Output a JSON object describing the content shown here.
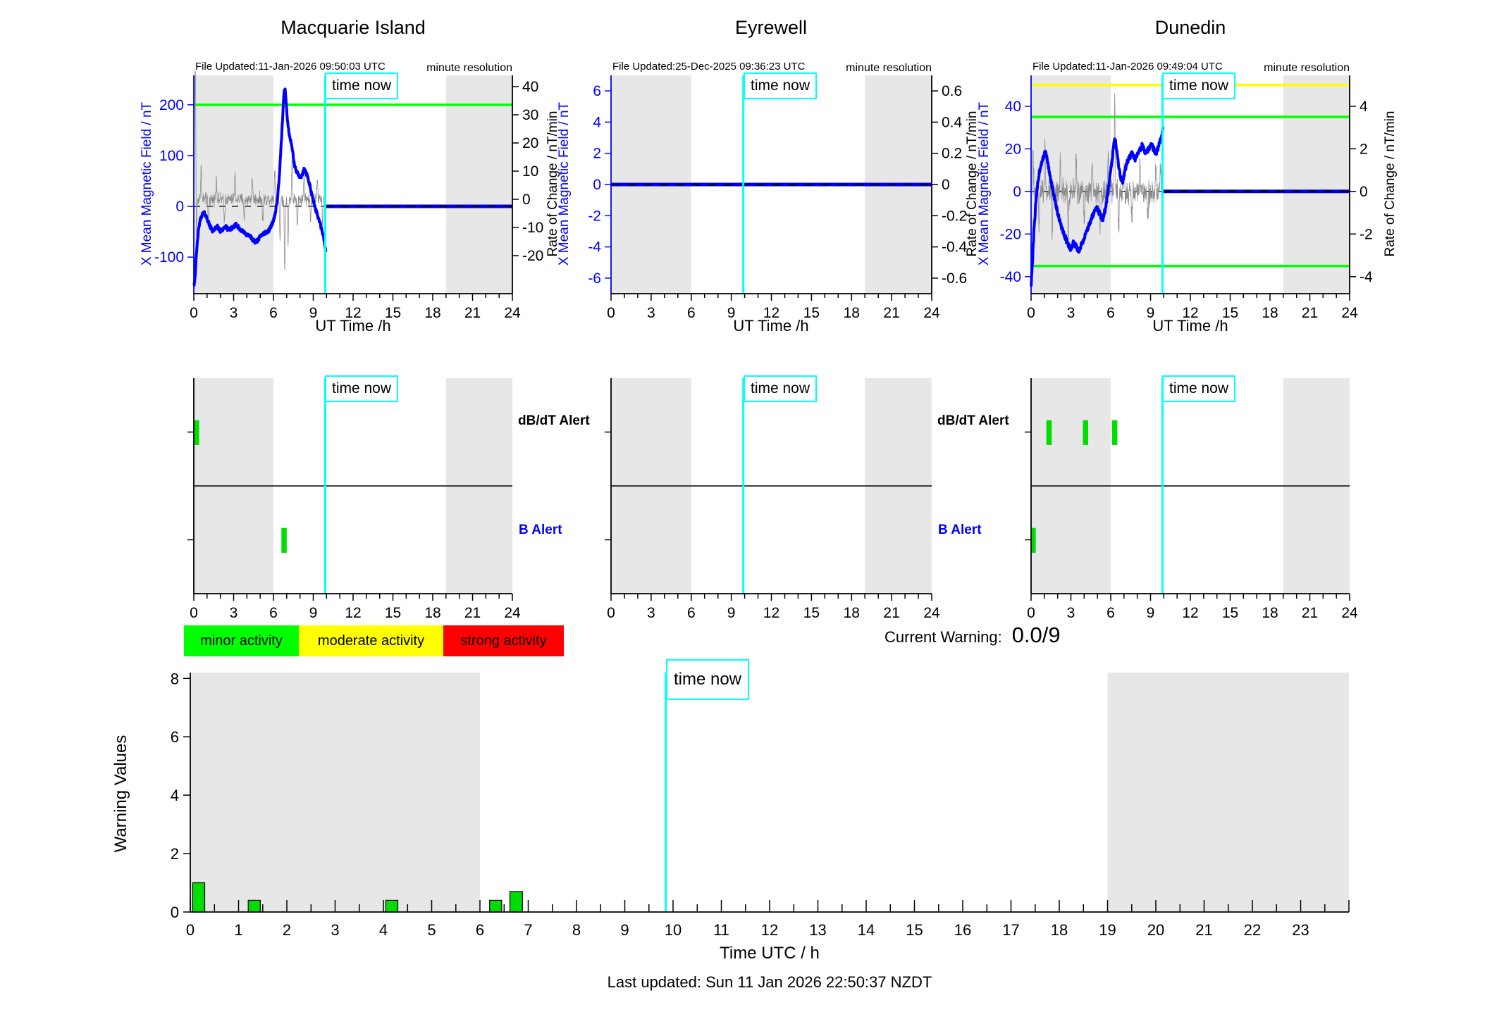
{
  "ui": {
    "time_now_label": "time now",
    "legend": [
      {
        "label": "minor activity",
        "color": "#00ff00"
      },
      {
        "label": "moderate activity",
        "color": "#ffff00"
      },
      {
        "label": "strong activity",
        "color": "#ff0000"
      }
    ],
    "current_warning_label": "Current Warning:",
    "current_warning_value": "0.0/9",
    "last_updated": "Last updated: Sun 11 Jan 2026 22:50:37 NZDT",
    "colors": {
      "field_line": "#0000ff",
      "forecast_line": "#0000e0",
      "noise_line": "#8c8c8c",
      "night_band": "#e7e7e7",
      "time_now": "#00ffff",
      "alert_bar": "#00dd00",
      "axis_left": "#0000ff",
      "axis_dark": "#000000"
    }
  },
  "chart_data": {
    "stations": [
      {
        "name": "Macquarie Island",
        "file_updated": "File Updated:11-Jan-2026 09:50:03 UTC",
        "resolution_note": "minute resolution",
        "type": "line",
        "x_axis": {
          "label": "UT Time /h",
          "lim": [
            0,
            24
          ],
          "ticks": [
            0,
            3,
            6,
            9,
            12,
            15,
            18,
            21,
            24
          ],
          "minor_step": 1
        },
        "y_left": {
          "label": "X Mean Magnetic Field / nT",
          "lim": [
            -172,
            258
          ],
          "ticks": [
            200,
            100,
            0,
            -100
          ]
        },
        "y_right": {
          "label": "Rate of Change / nT/min",
          "lim": [
            -33.5,
            44
          ],
          "ticks": [
            40,
            30,
            20,
            10,
            0,
            -10,
            -20
          ]
        },
        "night_bands": [
          [
            0,
            6
          ],
          [
            19,
            24
          ]
        ],
        "thresholds": [
          {
            "value": 200,
            "color": "#00ff00"
          }
        ],
        "time_now": 9.9,
        "forecast_from": 9.9,
        "forecast_value": 0,
        "field_series": [
          [
            0,
            -155
          ],
          [
            0.05,
            -150
          ],
          [
            0.1,
            -135
          ],
          [
            0.2,
            -95
          ],
          [
            0.3,
            -60
          ],
          [
            0.45,
            -30
          ],
          [
            0.6,
            -18
          ],
          [
            0.75,
            -12
          ],
          [
            0.9,
            -18
          ],
          [
            1.05,
            -28
          ],
          [
            1.2,
            -38
          ],
          [
            1.4,
            -48
          ],
          [
            1.6,
            -44
          ],
          [
            1.8,
            -40
          ],
          [
            2.0,
            -50
          ],
          [
            2.2,
            -44
          ],
          [
            2.4,
            -40
          ],
          [
            2.6,
            -46
          ],
          [
            2.8,
            -44
          ],
          [
            3.0,
            -40
          ],
          [
            3.2,
            -36
          ],
          [
            3.4,
            -42
          ],
          [
            3.6,
            -48
          ],
          [
            3.8,
            -52
          ],
          [
            4.0,
            -56
          ],
          [
            4.2,
            -58
          ],
          [
            4.4,
            -64
          ],
          [
            4.6,
            -70
          ],
          [
            4.8,
            -68
          ],
          [
            5.0,
            -60
          ],
          [
            5.2,
            -54
          ],
          [
            5.4,
            -52
          ],
          [
            5.6,
            -50
          ],
          [
            5.8,
            -40
          ],
          [
            6.0,
            -28
          ],
          [
            6.15,
            -12
          ],
          [
            6.3,
            15
          ],
          [
            6.45,
            60
          ],
          [
            6.6,
            130
          ],
          [
            6.7,
            180
          ],
          [
            6.8,
            225
          ],
          [
            6.88,
            232
          ],
          [
            6.95,
            210
          ],
          [
            7.05,
            170
          ],
          [
            7.15,
            148
          ],
          [
            7.3,
            128
          ],
          [
            7.45,
            108
          ],
          [
            7.55,
            85
          ],
          [
            7.7,
            70
          ],
          [
            7.85,
            64
          ],
          [
            8.0,
            58
          ],
          [
            8.15,
            60
          ],
          [
            8.3,
            72
          ],
          [
            8.45,
            68
          ],
          [
            8.6,
            55
          ],
          [
            8.75,
            40
          ],
          [
            8.9,
            22
          ],
          [
            9.05,
            8
          ],
          [
            9.2,
            -8
          ],
          [
            9.35,
            -20
          ],
          [
            9.5,
            -32
          ],
          [
            9.65,
            -48
          ],
          [
            9.8,
            -65
          ],
          [
            9.9,
            -80
          ],
          [
            9.95,
            -92
          ]
        ],
        "noise": {
          "amplitude": 3.2,
          "until": 9.9,
          "spikes": [
            [
              0.07,
              30
            ],
            [
              0.13,
              38
            ],
            [
              0.2,
              -16
            ],
            [
              0.55,
              12
            ],
            [
              1.1,
              -9
            ],
            [
              1.7,
              8
            ],
            [
              2.3,
              -8
            ],
            [
              3.1,
              9
            ],
            [
              3.8,
              -7
            ],
            [
              4.4,
              8
            ],
            [
              5.2,
              -8
            ],
            [
              6.1,
              11
            ],
            [
              6.5,
              -15
            ],
            [
              6.85,
              -25
            ],
            [
              7.1,
              -17
            ],
            [
              7.4,
              13
            ],
            [
              7.8,
              -10
            ],
            [
              8.3,
              9
            ],
            [
              8.8,
              -8
            ],
            [
              9.3,
              8
            ],
            [
              9.7,
              -9
            ]
          ]
        },
        "alerts": {
          "dbdt_label": "dB/dT Alert",
          "b_label": "B Alert",
          "dbdt_bars": [
            [
              0.05,
              0.4
            ]
          ],
          "b_bars": [
            [
              6.6,
              7.0
            ]
          ]
        }
      },
      {
        "name": "Eyrewell",
        "file_updated": "File Updated:25-Dec-2025 09:36:23 UTC",
        "resolution_note": "minute resolution",
        "type": "line",
        "x_axis": {
          "label": "UT Time /h",
          "lim": [
            0,
            24
          ],
          "ticks": [
            0,
            3,
            6,
            9,
            12,
            15,
            18,
            21,
            24
          ],
          "minor_step": 1
        },
        "y_left": {
          "label": "X Mean Magnetic Field / nT",
          "lim": [
            -7,
            7
          ],
          "ticks": [
            6,
            4,
            2,
            0,
            -2,
            -4,
            -6
          ]
        },
        "y_right": {
          "label": "Rate of Change / nT/min",
          "lim": [
            -0.7,
            0.7
          ],
          "ticks": [
            0.6,
            0.4,
            0.2,
            0,
            -0.2,
            -0.4,
            -0.6
          ]
        },
        "night_bands": [
          [
            0,
            6
          ],
          [
            19,
            24
          ]
        ],
        "thresholds": [],
        "time_now": 9.9,
        "forecast_from": 0,
        "forecast_value": 0,
        "field_series": null,
        "noise": null,
        "alerts": {
          "dbdt_label": "dB/dT Alert",
          "b_label": "B Alert",
          "dbdt_bars": [],
          "b_bars": []
        }
      },
      {
        "name": "Dunedin",
        "file_updated": "File Updated:11-Jan-2026 09:49:04 UTC",
        "resolution_note": "minute resolution",
        "type": "line",
        "x_axis": {
          "label": "UT Time /h",
          "lim": [
            0,
            24
          ],
          "ticks": [
            0,
            3,
            6,
            9,
            12,
            15,
            18,
            21,
            24
          ],
          "minor_step": 1
        },
        "y_left": {
          "label": "X Mean Magnetic Field / nT",
          "lim": [
            -48,
            54.5
          ],
          "ticks": [
            40,
            20,
            0,
            -20,
            -40
          ]
        },
        "y_right": {
          "label": "Rate of Change / nT/min",
          "lim": [
            -4.8,
            5.45
          ],
          "ticks": [
            4,
            2,
            0,
            -2,
            -4
          ]
        },
        "night_bands": [
          [
            0,
            6
          ],
          [
            19,
            24
          ]
        ],
        "thresholds": [
          {
            "value": 50,
            "color": "#ffff00"
          },
          {
            "value": 35,
            "color": "#00ff00"
          },
          {
            "value": -35,
            "color": "#00ff00"
          }
        ],
        "time_now": 9.9,
        "forecast_from": 9.9,
        "forecast_value": 0,
        "field_series": [
          [
            0,
            -44
          ],
          [
            0.1,
            -34
          ],
          [
            0.2,
            -20
          ],
          [
            0.35,
            -6
          ],
          [
            0.5,
            4
          ],
          [
            0.65,
            10
          ],
          [
            0.8,
            14
          ],
          [
            0.95,
            17
          ],
          [
            1.1,
            18
          ],
          [
            1.25,
            14
          ],
          [
            1.4,
            8
          ],
          [
            1.55,
            3
          ],
          [
            1.7,
            -1
          ],
          [
            1.85,
            -6
          ],
          [
            2.0,
            -10
          ],
          [
            2.2,
            -15
          ],
          [
            2.4,
            -19
          ],
          [
            2.6,
            -22
          ],
          [
            2.8,
            -25
          ],
          [
            3.0,
            -27
          ],
          [
            3.2,
            -24
          ],
          [
            3.4,
            -26
          ],
          [
            3.6,
            -28
          ],
          [
            3.8,
            -25
          ],
          [
            4.0,
            -22
          ],
          [
            4.2,
            -19
          ],
          [
            4.4,
            -15
          ],
          [
            4.6,
            -12
          ],
          [
            4.8,
            -9
          ],
          [
            5.0,
            -8
          ],
          [
            5.2,
            -11
          ],
          [
            5.4,
            -13
          ],
          [
            5.6,
            -8
          ],
          [
            5.8,
            0
          ],
          [
            6.0,
            10
          ],
          [
            6.15,
            18
          ],
          [
            6.3,
            25
          ],
          [
            6.45,
            20
          ],
          [
            6.6,
            12
          ],
          [
            6.75,
            6
          ],
          [
            6.9,
            5
          ],
          [
            7.05,
            9
          ],
          [
            7.2,
            13
          ],
          [
            7.35,
            15
          ],
          [
            7.5,
            17
          ],
          [
            7.65,
            18
          ],
          [
            7.8,
            15
          ],
          [
            7.95,
            16
          ],
          [
            8.1,
            18
          ],
          [
            8.25,
            20
          ],
          [
            8.4,
            22
          ],
          [
            8.55,
            19
          ],
          [
            8.7,
            18
          ],
          [
            8.85,
            20
          ],
          [
            9.0,
            22
          ],
          [
            9.15,
            21
          ],
          [
            9.3,
            19
          ],
          [
            9.45,
            18
          ],
          [
            9.6,
            21
          ],
          [
            9.75,
            24
          ],
          [
            9.85,
            26
          ],
          [
            9.95,
            31
          ]
        ],
        "noise": {
          "amplitude": 0.85,
          "until": 9.9,
          "spikes": [
            [
              0.15,
              1.8
            ],
            [
              0.6,
              -1.6
            ],
            [
              1.05,
              2.0
            ],
            [
              1.6,
              -1.8
            ],
            [
              2.2,
              1.6
            ],
            [
              2.8,
              -2.0
            ],
            [
              3.4,
              1.7
            ],
            [
              4.0,
              -1.6
            ],
            [
              4.6,
              1.5
            ],
            [
              5.2,
              -1.5
            ],
            [
              5.8,
              1.6
            ],
            [
              6.3,
              4.6
            ],
            [
              6.6,
              -1.8
            ],
            [
              7.0,
              1.5
            ],
            [
              7.6,
              -1.4
            ],
            [
              8.2,
              1.4
            ],
            [
              8.8,
              -1.3
            ],
            [
              9.4,
              1.3
            ],
            [
              9.75,
              1.5
            ]
          ]
        },
        "alerts": {
          "dbdt_label": "dB/dT Alert",
          "b_label": "B Alert",
          "dbdt_bars": [
            [
              1.15,
              1.55
            ],
            [
              3.9,
              4.3
            ],
            [
              6.1,
              6.5
            ]
          ],
          "b_bars": [
            [
              0.0,
              0.35
            ]
          ]
        }
      }
    ],
    "warning_chart": {
      "type": "bar",
      "xlabel": "Time UTC / h",
      "ylabel": "Warning Values",
      "xlim": [
        0,
        24
      ],
      "ylim": [
        0,
        8.2
      ],
      "max_warning": 9,
      "xticks_labeled": [
        0,
        1,
        2,
        3,
        4,
        5,
        6,
        7,
        8,
        9,
        10,
        11,
        12,
        13,
        14,
        15,
        16,
        17,
        18,
        19,
        20,
        21,
        22,
        23
      ],
      "x_minor_step": 0.5,
      "yticks": [
        0,
        2,
        4,
        6,
        8
      ],
      "night_bands": [
        [
          0,
          6
        ],
        [
          19,
          24
        ]
      ],
      "time_now": 9.85,
      "bars": [
        {
          "start": 0.05,
          "end": 0.3,
          "value": 1.0
        },
        {
          "start": 1.2,
          "end": 1.45,
          "value": 0.4
        },
        {
          "start": 4.05,
          "end": 4.3,
          "value": 0.4
        },
        {
          "start": 6.2,
          "end": 6.45,
          "value": 0.4
        },
        {
          "start": 6.62,
          "end": 6.88,
          "value": 0.7
        }
      ]
    }
  }
}
